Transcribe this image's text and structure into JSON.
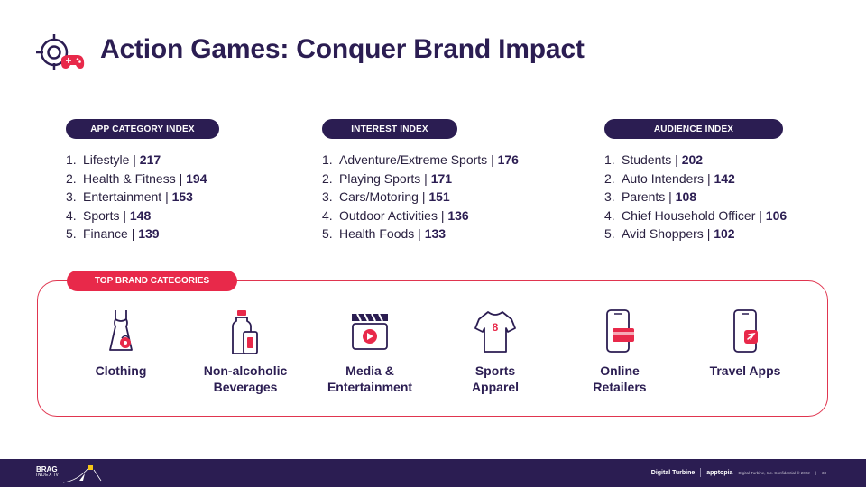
{
  "title": "Action Games: Conquer Brand Impact",
  "indexes": [
    {
      "heading": "APP CATEGORY INDEX",
      "items": [
        {
          "num": "1.",
          "name": "Lifestyle",
          "value": "217"
        },
        {
          "num": "2.",
          "name": "Health & Fitness",
          "value": "194"
        },
        {
          "num": "3.",
          "name": "Entertainment",
          "value": "153"
        },
        {
          "num": "4.",
          "name": "Sports",
          "value": "148"
        },
        {
          "num": "5.",
          "name": "Finance",
          "value": "139"
        }
      ]
    },
    {
      "heading": "INTEREST INDEX",
      "items": [
        {
          "num": "1.",
          "name": "Adventure/Extreme Sports",
          "value": "176"
        },
        {
          "num": "2.",
          "name": "Playing Sports",
          "value": "171"
        },
        {
          "num": "3.",
          "name": "Cars/Motoring",
          "value": "151"
        },
        {
          "num": "4.",
          "name": "Outdoor Activities",
          "value": "136"
        },
        {
          "num": "5.",
          "name": "Health Foods",
          "value": "133"
        }
      ]
    },
    {
      "heading": "AUDIENCE INDEX",
      "items": [
        {
          "num": "1.",
          "name": "Students",
          "value": "202"
        },
        {
          "num": "2.",
          "name": "Auto Intenders",
          "value": "142"
        },
        {
          "num": "3.",
          "name": "Parents",
          "value": "108"
        },
        {
          "num": "4.",
          "name": "Chief Household Officer",
          "value": "106"
        },
        {
          "num": "5.",
          "name": "Avid Shoppers",
          "value": "102"
        }
      ]
    }
  ],
  "brand_categories": {
    "heading": "TOP BRAND CATEGORIES",
    "items": [
      {
        "line1": "Clothing",
        "line2": "",
        "icon": "dress-icon"
      },
      {
        "line1": "Non-alcoholic",
        "line2": "Beverages",
        "icon": "beverage-bottle-icon"
      },
      {
        "line1": "Media &",
        "line2": "Entertainment",
        "icon": "clapperboard-icon"
      },
      {
        "line1": "Sports",
        "line2": "Apparel",
        "icon": "jersey-icon"
      },
      {
        "line1": "Online",
        "line2": "Retailers",
        "icon": "phone-card-icon"
      },
      {
        "line1": "Travel Apps",
        "line2": "",
        "icon": "phone-plane-icon"
      }
    ],
    "jersey_number": "8"
  },
  "footer": {
    "brag_logo": "BRAG",
    "brag_sub": "INDEX IV",
    "brand1": "Digital Turbine",
    "brand2": "apptopia",
    "confidential": "Digital Turbine, Inc. Confidential © 2022",
    "page": "33"
  },
  "colors": {
    "navy": "#2b1d52",
    "accent_red": "#e8294a",
    "text": "#2a2140"
  }
}
